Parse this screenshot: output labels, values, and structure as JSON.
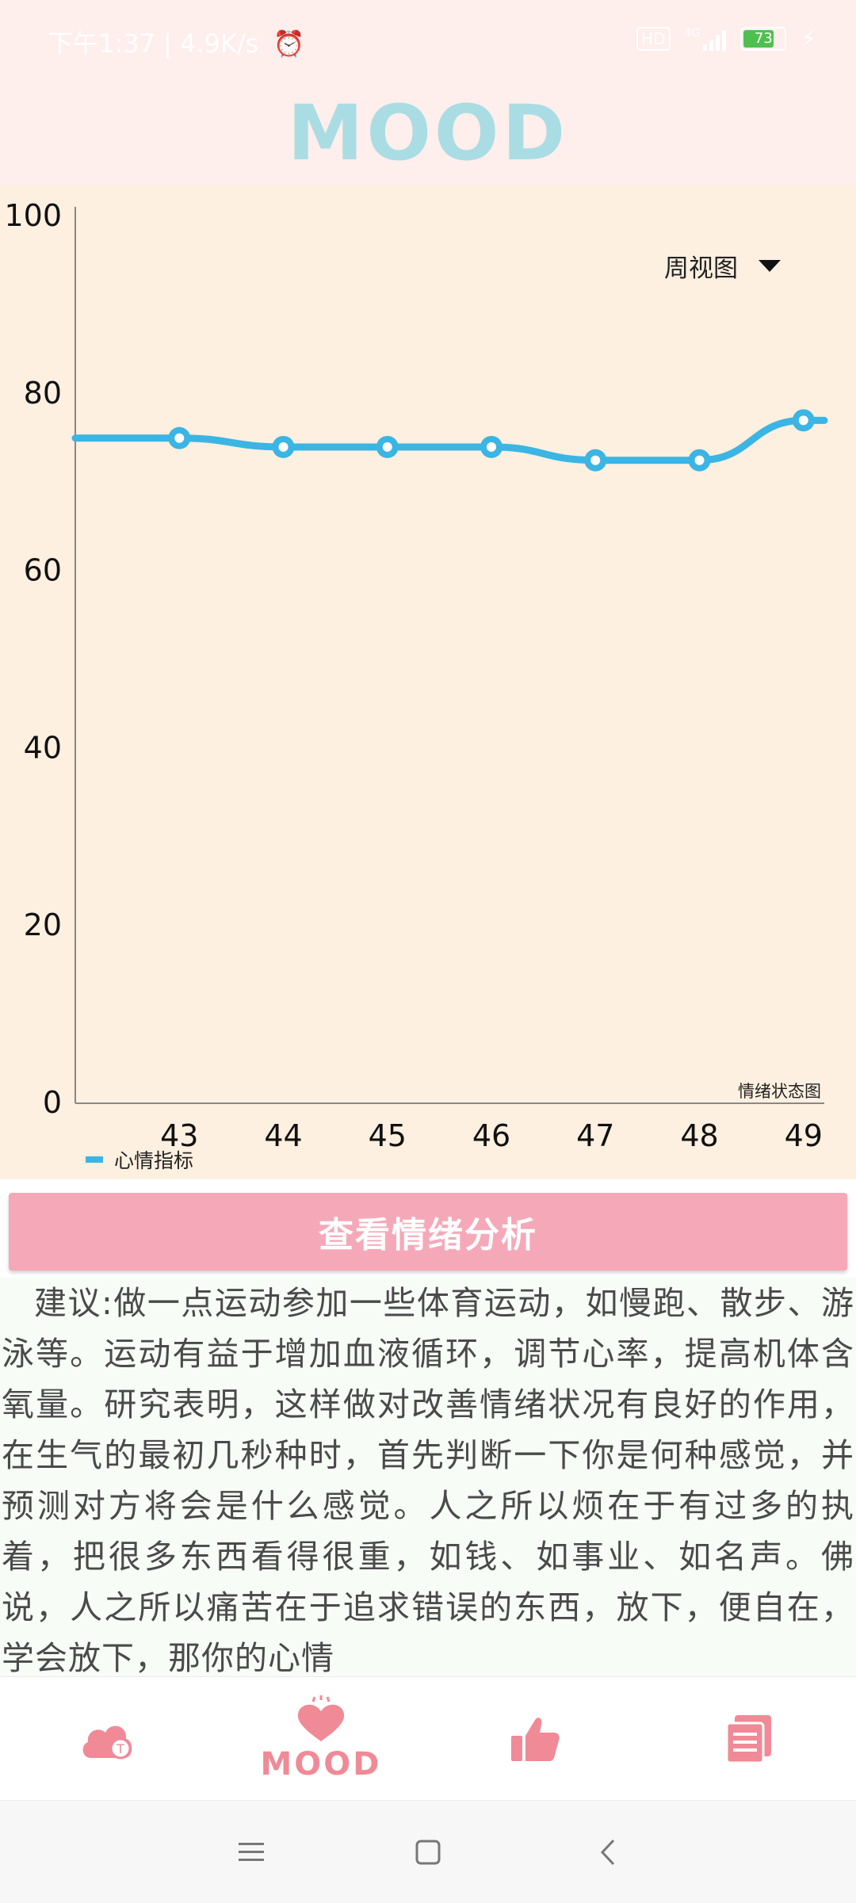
{
  "status_bar": {
    "left_text": "下午1:37 | 4.9K/s",
    "network_badge": "HD",
    "signal_label": "4G",
    "battery_level": "73",
    "icons": [
      "alarm-off-icon",
      "signal-icon",
      "battery-icon",
      "charging-icon"
    ]
  },
  "header": {
    "title": "MOOD"
  },
  "view_selector": {
    "label": "周视图"
  },
  "chart_data": {
    "type": "line",
    "title": "",
    "corner_label": "情绪状态图",
    "xlabel": "",
    "ylabel": "",
    "x": [
      42,
      43,
      44,
      45,
      46,
      47,
      48,
      49
    ],
    "x_tick_labels": [
      "43",
      "44",
      "45",
      "46",
      "47",
      "48",
      "49"
    ],
    "y_tick_labels": [
      "0",
      "20",
      "40",
      "60",
      "80",
      "100"
    ],
    "ylim": [
      0,
      100
    ],
    "series": [
      {
        "name": "心情指标",
        "x": [
          42,
          43,
          44,
          45,
          46,
          47,
          48,
          49,
          49.2
        ],
        "values": [
          75,
          75,
          74,
          74,
          74,
          72.5,
          72.5,
          77,
          77
        ],
        "marker_x": [
          43,
          44,
          45,
          46,
          47,
          48,
          49
        ]
      }
    ],
    "grid": false,
    "legend": "bottom-left",
    "colors": {
      "line": "#3bb5e3",
      "axis": "#888888"
    }
  },
  "analysis_button": {
    "label": "查看情绪分析"
  },
  "advice": {
    "text": "建议:做一点运动参加一些体育运动，如慢跑、散步、游泳等。运动有益于增加血液循环，调节心率，提高机体含氧量。研究表明，这样做对改善情绪状况有良好的作用，在生气的最初几秒种时，首先判断一下你是何种感觉，并预测对方将会是什么感觉。人之所以烦在于有过多的执着，把很多东西看得很重，如钱、如事业、如名声。佛说，人之所以痛苦在于追求错误的东西，放下，便自在，学会放下，那你的心情"
  },
  "bottom_nav": {
    "items": [
      {
        "name": "cloud-icon"
      },
      {
        "name": "heart-icon",
        "label": "MOOD"
      },
      {
        "name": "thumbs-up-icon"
      },
      {
        "name": "notes-icon"
      }
    ],
    "colors": {
      "icon": "#f08a96"
    }
  },
  "system_nav": {
    "icons": [
      "menu-icon",
      "home-icon",
      "back-icon"
    ]
  }
}
